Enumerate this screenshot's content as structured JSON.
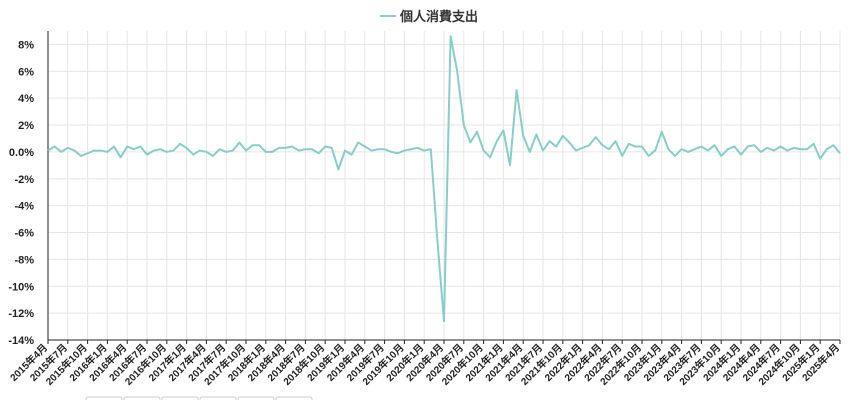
{
  "chart_data": {
    "type": "line",
    "title": "",
    "xlabel": "",
    "ylabel": "",
    "ylim": [
      -14,
      9
    ],
    "y_ticks": [
      8,
      6,
      4,
      2,
      0,
      -2,
      -4,
      -6,
      -8,
      -10,
      -12,
      -14
    ],
    "y_tick_labels": [
      "8%",
      "6%",
      "4%",
      "2%",
      "0.0%",
      "-2%",
      "-4%",
      "-6%",
      "-8%",
      "-10%",
      "-12%",
      "-14%"
    ],
    "grid": true,
    "legend_position": "top-center",
    "x_labels": [
      "2015年4月",
      "2015年7月",
      "2015年10月",
      "2016年1月",
      "2016年4月",
      "2016年7月",
      "2016年10月",
      "2017年1月",
      "2017年4月",
      "2017年7月",
      "2017年10月",
      "2018年1月",
      "2018年4月",
      "2018年7月",
      "2018年10月",
      "2019年1月",
      "2019年4月",
      "2019年7月",
      "2019年10月",
      "2020年1月",
      "2020年4月",
      "2020年7月",
      "2020年10月",
      "2021年1月",
      "2021年4月",
      "2021年7月",
      "2021年10月",
      "2022年1月",
      "2022年4月",
      "2022年7月",
      "2022年10月",
      "2023年1月",
      "2023年4月",
      "2023年7月",
      "2023年10月",
      "2024年1月",
      "2024年4月",
      "2024年7月",
      "2024年10月",
      "2025年1月",
      "2025年4月"
    ],
    "series": [
      {
        "name": "個人消費支出",
        "color": "#88cec7",
        "values": [
          0.1,
          0.4,
          0.0,
          0.3,
          0.1,
          -0.3,
          -0.1,
          0.1,
          0.1,
          0.0,
          0.4,
          -0.4,
          0.4,
          0.2,
          0.4,
          -0.2,
          0.1,
          0.2,
          0.0,
          0.1,
          0.6,
          0.3,
          -0.2,
          0.1,
          0.0,
          -0.3,
          0.2,
          0.0,
          0.1,
          0.7,
          0.1,
          0.5,
          0.5,
          0.0,
          0.0,
          0.3,
          0.3,
          0.4,
          0.1,
          0.2,
          0.2,
          -0.1,
          0.4,
          0.3,
          -1.3,
          0.1,
          -0.2,
          0.7,
          0.4,
          0.1,
          0.2,
          0.2,
          0.0,
          -0.1,
          0.1,
          0.2,
          0.3,
          0.1,
          0.2,
          -6.6,
          -12.6,
          8.6,
          6.0,
          2.0,
          0.7,
          1.5,
          0.1,
          -0.4,
          0.8,
          1.6,
          -1.0,
          4.6,
          1.2,
          0.0,
          1.3,
          0.1,
          0.8,
          0.4,
          1.2,
          0.7,
          0.1,
          0.3,
          0.5,
          1.1,
          0.5,
          0.2,
          0.8,
          -0.3,
          0.6,
          0.4,
          0.4,
          -0.3,
          0.1,
          1.5,
          0.2,
          -0.3,
          0.2,
          0.0,
          0.2,
          0.4,
          0.1,
          0.5,
          -0.3,
          0.2,
          0.4,
          -0.2,
          0.4,
          0.5,
          0.0,
          0.3,
          0.1,
          0.4,
          0.1,
          0.3,
          0.2,
          0.2,
          0.6,
          -0.5,
          0.2,
          0.5,
          -0.1
        ]
      }
    ]
  }
}
